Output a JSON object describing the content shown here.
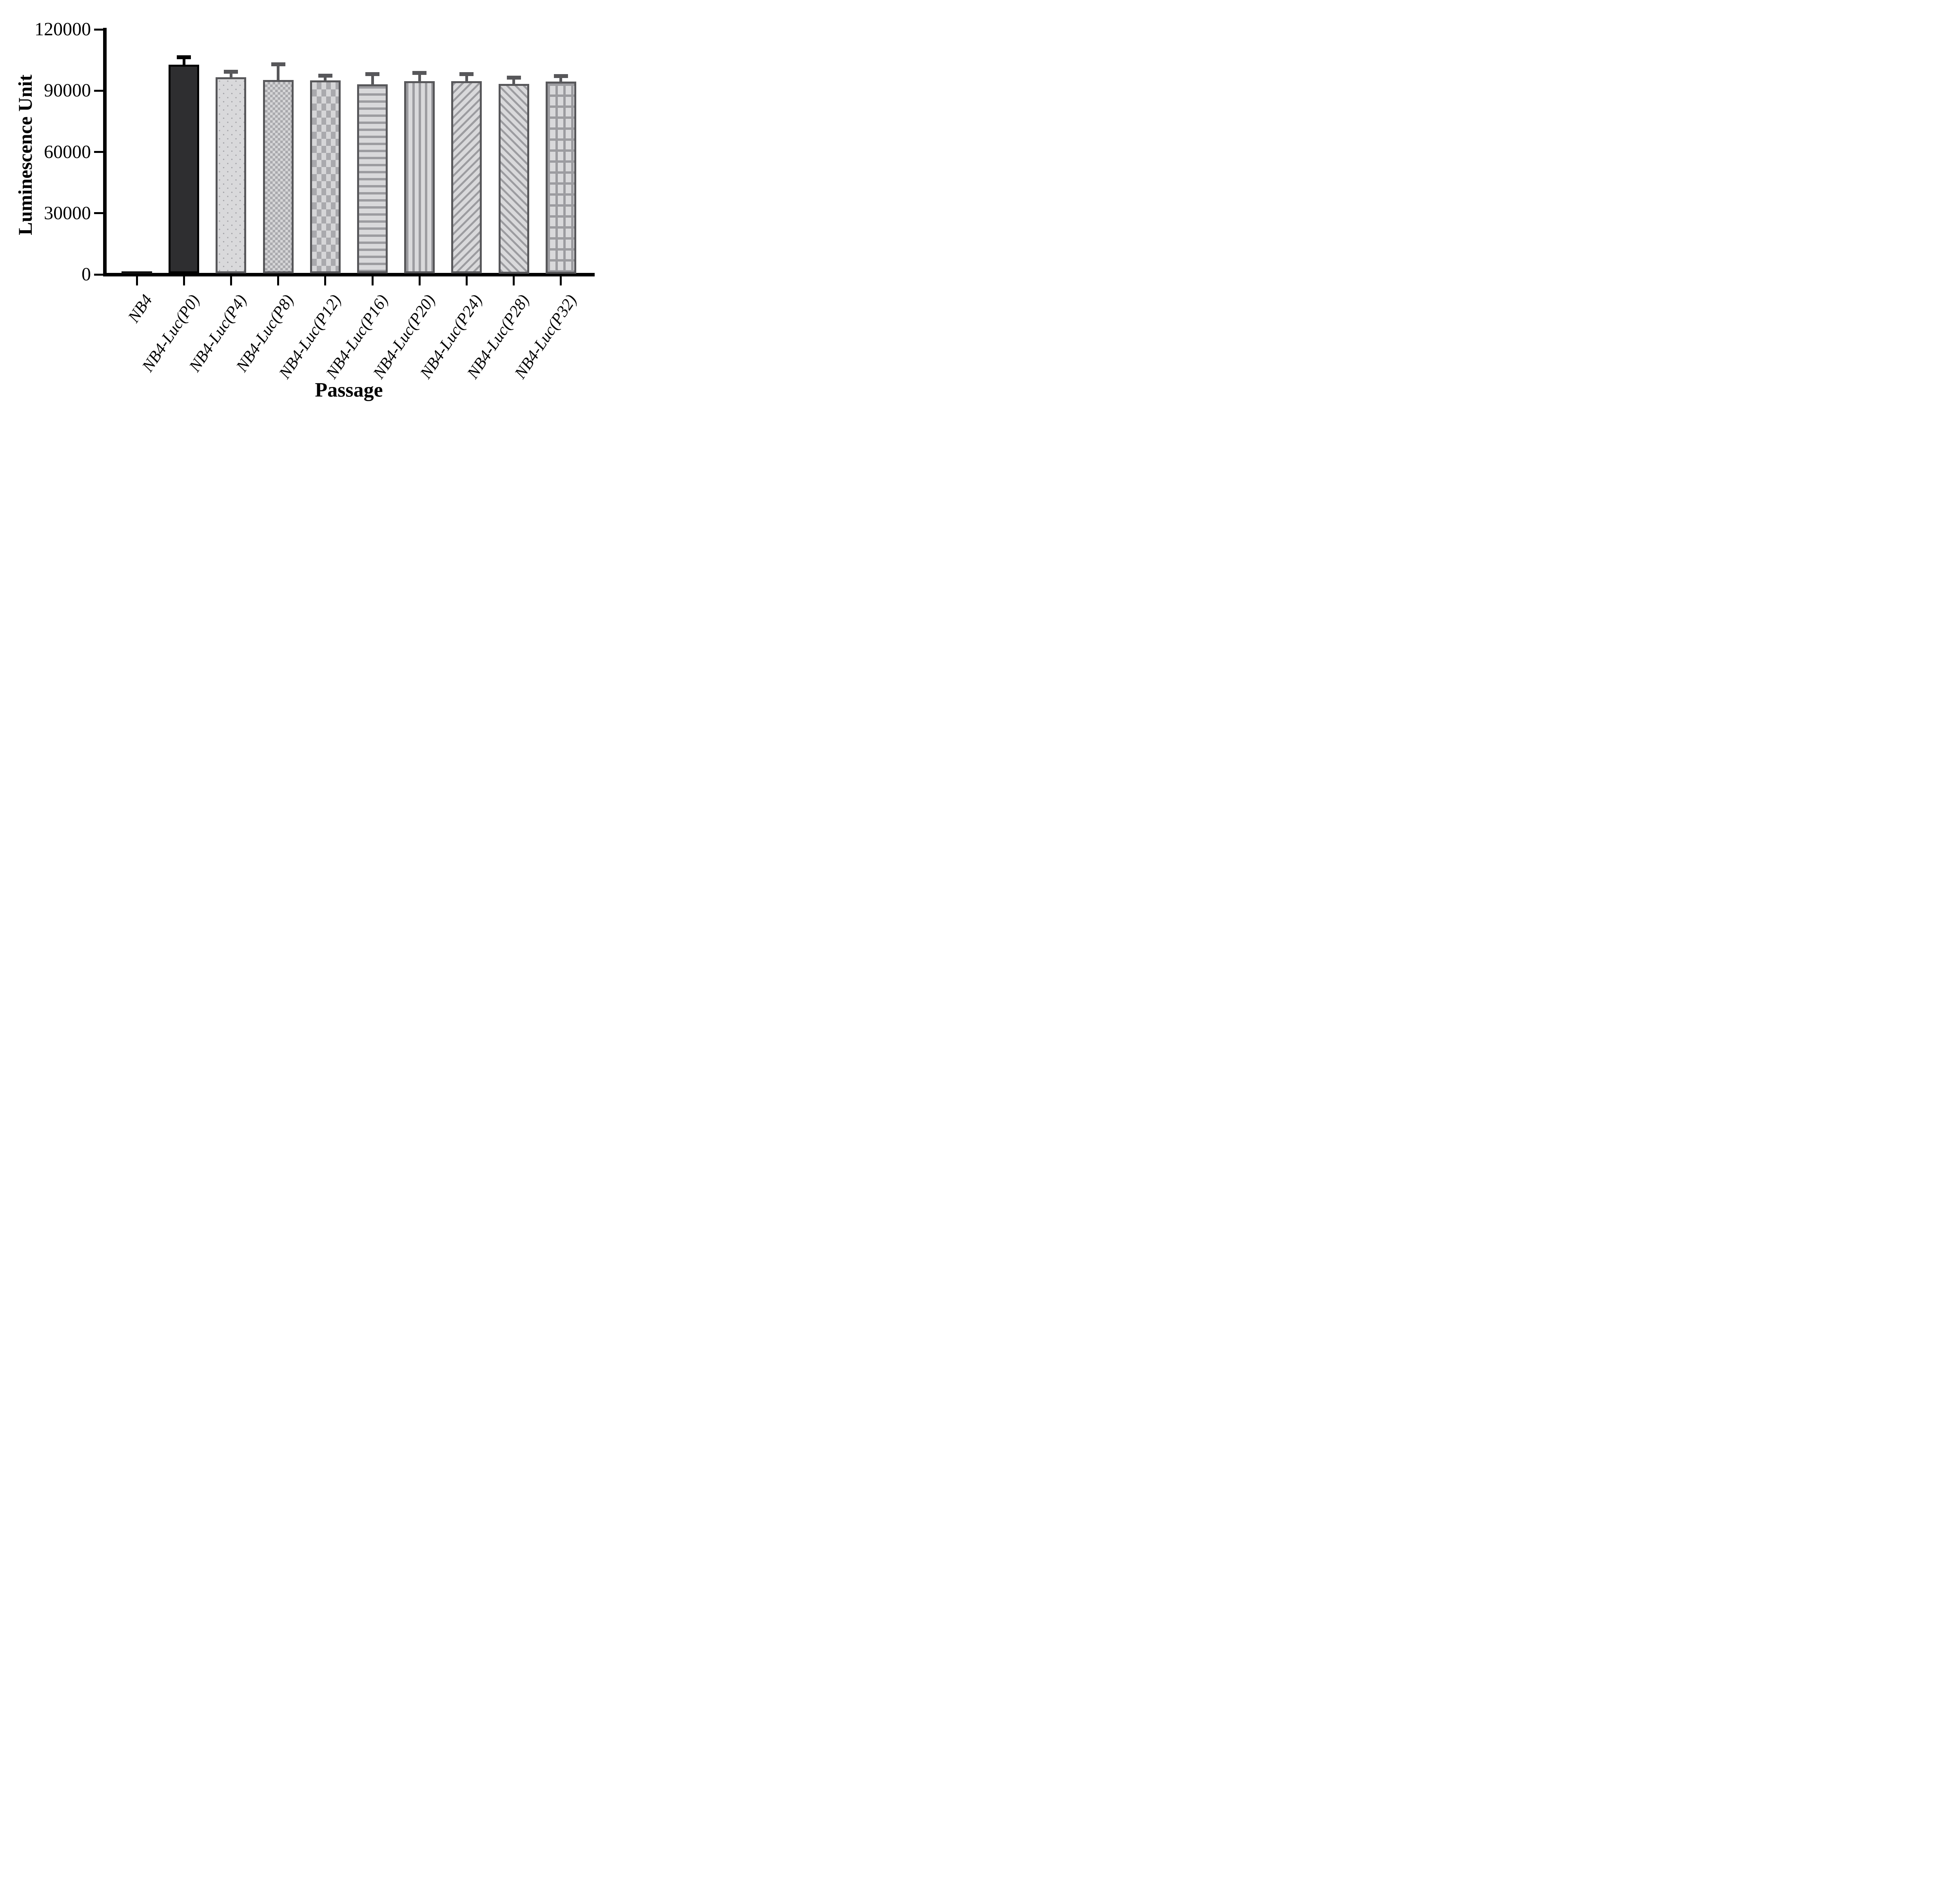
{
  "chart_data": {
    "type": "bar",
    "title": "",
    "xlabel": "Passage",
    "ylabel": "Luminescence Unit",
    "categories": [
      "NB4",
      "NB4-Luc(P0)",
      "NB4-Luc(P4)",
      "NB4-Luc(P8)",
      "NB4-Luc(P12)",
      "NB4-Luc(P16)",
      "NB4-Luc(P20)",
      "NB4-Luc(P24)",
      "NB4-Luc(P28)",
      "NB4-Luc(P32)"
    ],
    "values": [
      800,
      102700,
      96500,
      95200,
      95000,
      93200,
      94600,
      94600,
      93300,
      94500
    ],
    "errors": [
      0,
      2800,
      1900,
      6800,
      1300,
      4000,
      3100,
      2600,
      2100,
      1700
    ],
    "error_direction": "up",
    "patterns": [
      "solid-black",
      "solid-dark",
      "dots",
      "checker-fine",
      "checker-coarse",
      "hlines",
      "vlines",
      "diag-forward",
      "diag-backward",
      "grid"
    ],
    "ylim": [
      0,
      120000
    ],
    "yticks": [
      0,
      30000,
      60000,
      90000,
      120000
    ],
    "ytick_labels": [
      "0",
      "30000",
      "60000",
      "90000",
      "120000"
    ],
    "grid": "off",
    "legend": "none",
    "colors": {
      "axis": "#000000",
      "dark_bar_fill": "#2e2e30",
      "dark_bar_border": "#000000",
      "light_bar_fill": "#d9d9db",
      "pattern_line": "#9c9ca0",
      "light_bar_border": "#57575a",
      "dark_error": "#000000",
      "light_error": "#57575a",
      "background": "#ffffff"
    }
  }
}
